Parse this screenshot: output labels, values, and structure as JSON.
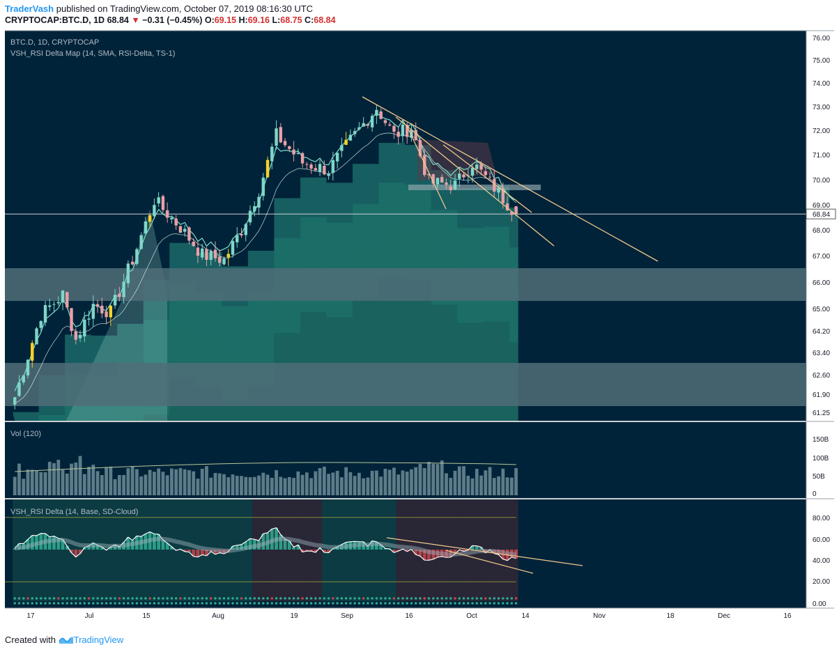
{
  "header": {
    "author": "TraderVash",
    "published": "published on TradingView.com, October 07, 2019 08:16:30 UTC",
    "symbol": "CRYPTOCAP:BTC.D, 1D",
    "last": "68.84",
    "arrow": "▼",
    "change": "−0.31 (−0.45%)",
    "o_label": "O:",
    "o": "69.15",
    "h_label": "H:",
    "h": "69.16",
    "l_label": "L:",
    "l": "68.75",
    "c_label": "C:",
    "c": "68.84"
  },
  "footer": {
    "created": "Created with",
    "brand": "TradingView"
  },
  "chart_data": [
    {
      "type": "candlestick",
      "title": "BTC.D, 1D, CRYPTOCAP",
      "indicator": "VSH_RSI Delta Map (14, SMA, RSI-Delta, TS-1)",
      "price_label": "68.84",
      "y_ticks": [
        "76.00",
        "75.00",
        "74.00",
        "73.00",
        "72.00",
        "71.00",
        "70.00",
        "69.00",
        "68.00",
        "67.00",
        "66.00",
        "65.00",
        "64.20",
        "63.40",
        "62.60",
        "61.90",
        "61.25"
      ],
      "x_ticks": [
        "17",
        "Jul",
        "15",
        "Aug",
        "19",
        "Sep",
        "16",
        "Oct",
        "14",
        "Nov",
        "18",
        "Dec",
        "16"
      ],
      "approx_close_path": [
        {
          "date": "2019-06-14",
          "close": 61.5
        },
        {
          "date": "2019-06-20",
          "close": 64.8
        },
        {
          "date": "2019-06-25",
          "close": 65.6
        },
        {
          "date": "2019-06-28",
          "close": 63.8
        },
        {
          "date": "2019-07-02",
          "close": 65.2
        },
        {
          "date": "2019-07-06",
          "close": 64.9
        },
        {
          "date": "2019-07-11",
          "close": 67.0
        },
        {
          "date": "2019-07-16",
          "close": 69.4
        },
        {
          "date": "2019-07-22",
          "close": 68.3
        },
        {
          "date": "2019-07-27",
          "close": 67.2
        },
        {
          "date": "2019-08-01",
          "close": 67.0
        },
        {
          "date": "2019-08-05",
          "close": 68.2
        },
        {
          "date": "2019-08-09",
          "close": 69.8
        },
        {
          "date": "2019-08-13",
          "close": 72.0
        },
        {
          "date": "2019-08-19",
          "close": 70.9
        },
        {
          "date": "2019-08-25",
          "close": 70.6
        },
        {
          "date": "2019-08-30",
          "close": 71.8
        },
        {
          "date": "2019-09-05",
          "close": 73.1
        },
        {
          "date": "2019-09-09",
          "close": 72.0
        },
        {
          "date": "2019-09-13",
          "close": 72.3
        },
        {
          "date": "2019-09-17",
          "close": 70.1
        },
        {
          "date": "2019-09-23",
          "close": 70.0
        },
        {
          "date": "2019-09-27",
          "close": 70.9
        },
        {
          "date": "2019-10-02",
          "close": 69.9
        },
        {
          "date": "2019-10-07",
          "close": 68.84
        }
      ]
    },
    {
      "type": "bar",
      "title": "Vol (120)",
      "y_ticks": [
        "150B",
        "100B",
        "50B",
        "0"
      ]
    },
    {
      "type": "line",
      "title": "VSH_RSI Delta (14, Base, SD-Cloud)",
      "y_ticks": [
        "80.00",
        "60.00",
        "40.00",
        "20.00",
        "0.00"
      ]
    }
  ],
  "colors": {
    "background": "#002339",
    "bull_candle": "#7fd6c8",
    "bear_candle": "#e8a0a6",
    "yellow_candle": "#f7d22a",
    "zone": "#4f6d78",
    "trendline": "#f2c98d",
    "cloud": "#2a8f84"
  }
}
